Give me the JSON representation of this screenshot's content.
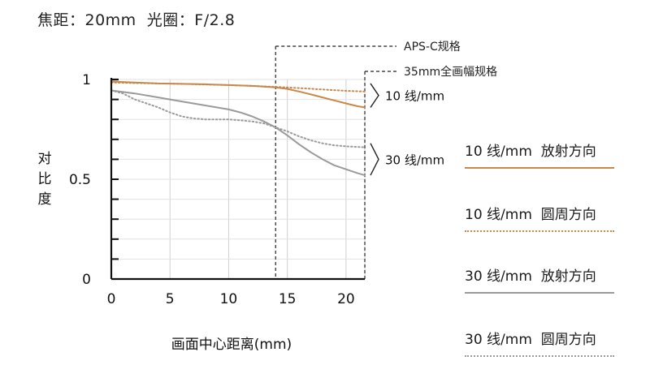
{
  "header": {
    "title": "焦距：20mm  光圈：F/2.8"
  },
  "chart_data": {
    "type": "line",
    "xlabel": "画面中心距离(mm)",
    "ylabel": "对比度",
    "xlim": [
      0,
      21.6
    ],
    "ylim": [
      0,
      1
    ],
    "x_ticks": [
      0,
      5,
      10,
      15,
      20
    ],
    "y_ticks": [
      0,
      0.5,
      1
    ],
    "y_tick_labels": [
      "0",
      "0.5",
      "1"
    ],
    "grid": true,
    "legend_placement": "right",
    "markers": [
      {
        "label": "APS-C规格",
        "x": 14.0
      },
      {
        "label": "35mm全画幅规格",
        "x": 21.6
      }
    ],
    "group_labels": [
      {
        "label": "10 线/mm",
        "y_range": [
          0.86,
          0.98
        ]
      },
      {
        "label": "30 线/mm",
        "y_range": [
          0.52,
          0.68
        ]
      }
    ],
    "series": [
      {
        "name": "10 线/mm  放射方向",
        "color": "#c8884a",
        "style": "solid",
        "x": [
          0,
          2,
          4,
          6,
          8,
          10,
          12,
          14,
          15,
          16,
          17,
          18,
          19,
          20,
          21,
          21.6
        ],
        "y": [
          0.99,
          0.985,
          0.98,
          0.978,
          0.976,
          0.972,
          0.968,
          0.96,
          0.953,
          0.94,
          0.925,
          0.91,
          0.895,
          0.88,
          0.866,
          0.86
        ]
      },
      {
        "name": "10 线/mm  圆周方向",
        "color": "#c8884a",
        "style": "dotted",
        "x": [
          0,
          2,
          4,
          6,
          8,
          10,
          12,
          14,
          16,
          18,
          20,
          21.6
        ],
        "y": [
          0.985,
          0.982,
          0.98,
          0.978,
          0.975,
          0.972,
          0.968,
          0.963,
          0.957,
          0.95,
          0.943,
          0.94
        ]
      },
      {
        "name": "30 线/mm  放射方向",
        "color": "#9a9a9a",
        "style": "solid",
        "x": [
          0,
          2,
          4,
          6,
          8,
          10,
          11,
          12,
          13,
          14,
          15,
          16,
          17,
          18,
          19,
          20,
          21,
          21.6
        ],
        "y": [
          0.945,
          0.93,
          0.91,
          0.89,
          0.87,
          0.85,
          0.835,
          0.815,
          0.79,
          0.76,
          0.72,
          0.675,
          0.635,
          0.6,
          0.57,
          0.55,
          0.53,
          0.52
        ]
      },
      {
        "name": "30 线/mm  圆周方向",
        "color": "#9a9a9a",
        "style": "dotted",
        "x": [
          0,
          1,
          2,
          3,
          4,
          5,
          6,
          7,
          8,
          9,
          10,
          11,
          12,
          13,
          14,
          15,
          16,
          17,
          18,
          19,
          20,
          21.6
        ],
        "y": [
          0.945,
          0.93,
          0.9,
          0.88,
          0.86,
          0.835,
          0.815,
          0.805,
          0.8,
          0.8,
          0.8,
          0.795,
          0.79,
          0.78,
          0.76,
          0.74,
          0.715,
          0.695,
          0.68,
          0.67,
          0.665,
          0.66
        ]
      }
    ]
  },
  "legend": {
    "items": [
      {
        "label": "10 线/mm  放射方向",
        "color": "#c8884a",
        "style": "solid"
      },
      {
        "label": "10 线/mm  圆周方向",
        "color": "#c8884a",
        "style": "dotted"
      },
      {
        "label": "30 线/mm  放射方向",
        "color": "#9a9a9a",
        "style": "solid"
      },
      {
        "label": "30 线/mm  圆周方向",
        "color": "#9a9a9a",
        "style": "dotted"
      }
    ]
  }
}
